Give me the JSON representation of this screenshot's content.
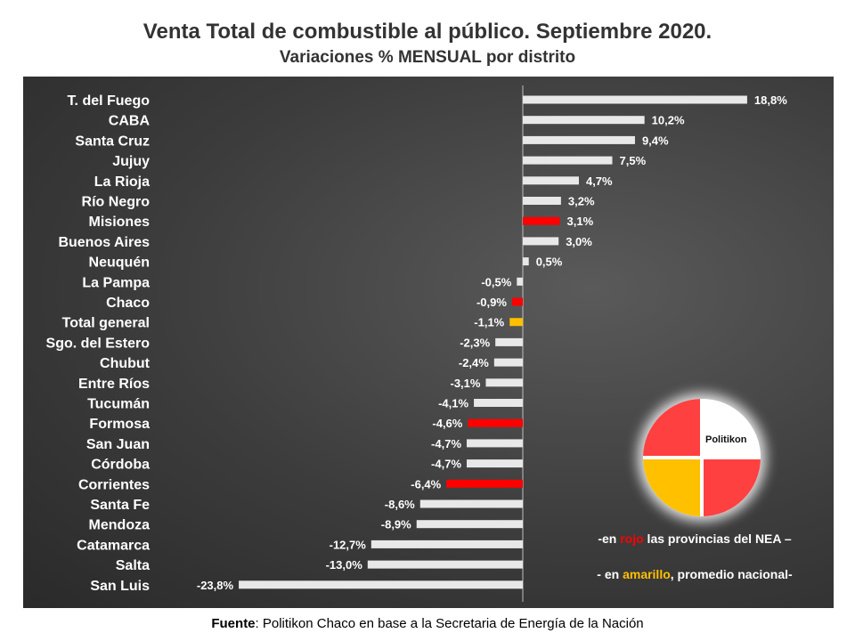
{
  "title": "Venta Total de combustible al público. Septiembre 2020.",
  "subtitle": "Variaciones % MENSUAL por distrito",
  "source": {
    "label": "Fuente",
    "text": ": Politikon Chaco en base a la Secretaria de Energía de la Nación"
  },
  "legend_notes": {
    "line1_pre": "-en ",
    "line1_highlight": "rojo",
    "line1_post": " las provincias del NEA –",
    "line2_pre": "- en ",
    "line2_highlight": "amarillo",
    "line2_post": ", promedio nacional-"
  },
  "logo_text": "Politikon",
  "colors": {
    "default": "#e8e8e8",
    "nea": "#ff0000",
    "national": "#ffc000",
    "logo_red": "#ff4040",
    "logo_yellow": "#ffc000"
  },
  "chart_data": {
    "type": "bar",
    "orientation": "horizontal",
    "categories": [
      "T. del Fuego",
      "CABA",
      "Santa Cruz",
      "Jujuy",
      "La Rioja",
      "Río Negro",
      "Misiones",
      "Buenos Aires",
      "Neuquén",
      "La Pampa",
      "Chaco",
      "Total general",
      "Sgo. del Estero",
      "Chubut",
      "Entre Ríos",
      "Tucumán",
      "Formosa",
      "San Juan",
      "Córdoba",
      "Corrientes",
      "Santa Fe",
      "Mendoza",
      "Catamarca",
      "Salta",
      "San Luis"
    ],
    "values": [
      18.8,
      10.2,
      9.4,
      7.5,
      4.7,
      3.2,
      3.1,
      3.0,
      0.5,
      -0.5,
      -0.9,
      -1.1,
      -2.3,
      -2.4,
      -3.1,
      -4.1,
      -4.6,
      -4.7,
      -4.7,
      -6.4,
      -8.6,
      -8.9,
      -12.7,
      -13.0,
      -23.8
    ],
    "labels": [
      "18,8%",
      "10,2%",
      "9,4%",
      "7,5%",
      "4,7%",
      "3,2%",
      "3,1%",
      "3,0%",
      "0,5%",
      "-0,5%",
      "-0,9%",
      "-1,1%",
      "-2,3%",
      "-2,4%",
      "-3,1%",
      "-4,1%",
      "-4,6%",
      "-4,7%",
      "-4,7%",
      "-6,4%",
      "-8,6%",
      "-8,9%",
      "-12,7%",
      "-13,0%",
      "-23,8%"
    ],
    "highlight": [
      "default",
      "default",
      "default",
      "default",
      "default",
      "default",
      "nea",
      "default",
      "default",
      "default",
      "nea",
      "national",
      "default",
      "default",
      "default",
      "default",
      "nea",
      "default",
      "default",
      "nea",
      "default",
      "default",
      "default",
      "default",
      "default"
    ],
    "xlim": [
      -23.8,
      18.8
    ],
    "grid": false
  }
}
